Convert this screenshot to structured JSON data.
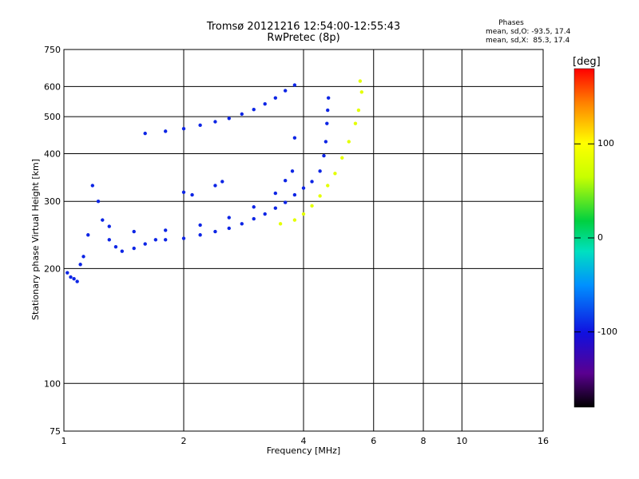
{
  "header": {
    "title": "Tromsø 20121216 12:54:00-12:55:43",
    "subtitle": "RwPretec (8p)"
  },
  "phases": {
    "heading": "Phases",
    "o_mode": "mean, sd,O: -93.5, 17.4",
    "x_mode": "mean, sd,X:  85.3, 17.4"
  },
  "colorbar": {
    "unit": "[deg]",
    "ticks": [
      "100",
      "0",
      "-100"
    ],
    "tick_values": [
      100,
      0,
      -100
    ],
    "range": [
      -180,
      180
    ]
  },
  "chart_data": {
    "type": "scatter",
    "title": "Tromsø 20121216 12:54:00-12:55:43",
    "subtitle": "RwPretec (8p)",
    "xlabel": "Frequency [MHz]",
    "ylabel": "Stationary phase Virtual Height [km]",
    "x_scale": "log",
    "y_scale": "log",
    "xlim": [
      1,
      16
    ],
    "ylim": [
      75,
      750
    ],
    "x_ticks": [
      1,
      2,
      4,
      6,
      8,
      10,
      16
    ],
    "x_tick_labels": [
      "1",
      "2",
      "4",
      "6",
      "8",
      "10",
      "16"
    ],
    "y_ticks": [
      75,
      100,
      200,
      300,
      400,
      500,
      600,
      750
    ],
    "y_tick_labels": [
      "75",
      "100",
      "200",
      "300",
      "400",
      "500",
      "600",
      "750"
    ],
    "grid": true,
    "color_encodes": "phase [deg]",
    "series": [
      {
        "mode": "O",
        "phase_mean": -93.5,
        "phase_sd": 17.4,
        "points": [
          [
            1.02,
            195
          ],
          [
            1.04,
            190
          ],
          [
            1.06,
            188
          ],
          [
            1.08,
            185
          ],
          [
            1.1,
            205
          ],
          [
            1.12,
            215
          ],
          [
            1.15,
            245
          ],
          [
            1.18,
            330
          ],
          [
            1.22,
            300
          ],
          [
            1.25,
            268
          ],
          [
            1.3,
            238
          ],
          [
            1.35,
            228
          ],
          [
            1.4,
            222
          ],
          [
            1.5,
            226
          ],
          [
            1.6,
            232
          ],
          [
            1.7,
            238
          ],
          [
            1.8,
            238
          ],
          [
            2.0,
            240
          ],
          [
            2.2,
            245
          ],
          [
            2.4,
            250
          ],
          [
            2.6,
            255
          ],
          [
            2.8,
            262
          ],
          [
            3.0,
            270
          ],
          [
            3.2,
            278
          ],
          [
            3.4,
            288
          ],
          [
            3.6,
            298
          ],
          [
            3.8,
            312
          ],
          [
            4.0,
            325
          ],
          [
            4.2,
            338
          ],
          [
            4.4,
            360
          ],
          [
            4.5,
            395
          ],
          [
            4.55,
            430
          ],
          [
            4.58,
            480
          ],
          [
            4.6,
            520
          ],
          [
            4.62,
            560
          ],
          [
            1.3,
            258
          ],
          [
            1.5,
            250
          ],
          [
            1.8,
            252
          ],
          [
            2.2,
            260
          ],
          [
            2.6,
            272
          ],
          [
            3.0,
            290
          ],
          [
            3.4,
            315
          ],
          [
            3.6,
            340
          ],
          [
            3.75,
            360
          ],
          [
            3.8,
            440
          ],
          [
            2.0,
            317
          ],
          [
            2.1,
            312
          ],
          [
            2.4,
            330
          ],
          [
            2.5,
            338
          ],
          [
            1.6,
            452
          ],
          [
            1.8,
            458
          ],
          [
            2.0,
            465
          ],
          [
            2.2,
            475
          ],
          [
            2.4,
            485
          ],
          [
            2.6,
            495
          ],
          [
            2.8,
            508
          ],
          [
            3.0,
            522
          ],
          [
            3.2,
            540
          ],
          [
            3.4,
            560
          ],
          [
            3.6,
            585
          ],
          [
            3.8,
            605
          ]
        ]
      },
      {
        "mode": "X",
        "phase_mean": 85.3,
        "phase_sd": 17.4,
        "points": [
          [
            3.5,
            262
          ],
          [
            3.8,
            268
          ],
          [
            4.0,
            278
          ],
          [
            4.2,
            292
          ],
          [
            4.4,
            310
          ],
          [
            4.6,
            330
          ],
          [
            4.8,
            355
          ],
          [
            5.0,
            390
          ],
          [
            5.2,
            430
          ],
          [
            5.4,
            480
          ],
          [
            5.5,
            520
          ],
          [
            5.6,
            580
          ],
          [
            5.55,
            620
          ]
        ]
      }
    ]
  }
}
